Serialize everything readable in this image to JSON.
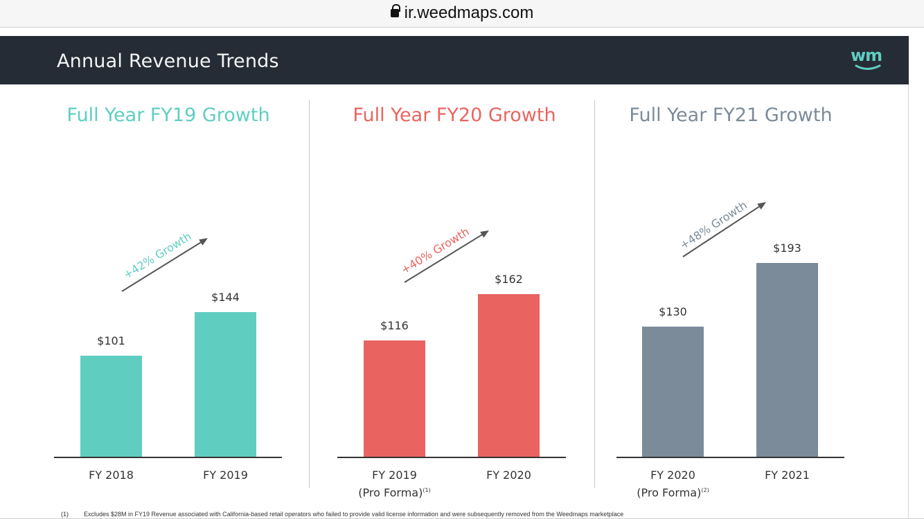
{
  "browser": {
    "url": "ir.weedmaps.com"
  },
  "slide": {
    "title": "Annual Revenue Trends",
    "logo": "wm",
    "footnote": {
      "mark": "(1)",
      "text": "Excludes $28M in FY19 Revenue associated with California-based retail operators who failed to provide valid license information and were subsequently removed from the Weedmaps marketplace"
    }
  },
  "chart_data": [
    {
      "type": "bar",
      "title": "Full Year FY19 Growth",
      "title_color": "#5fcec1",
      "bar_color": "#5fcec1",
      "categories": [
        "FY 2018",
        "FY 2019"
      ],
      "category_notes": [
        "",
        ""
      ],
      "values": [
        101,
        144
      ],
      "value_labels": [
        "$101",
        "$144"
      ],
      "growth_label": "+42% Growth",
      "growth_color": "#5fcec1"
    },
    {
      "type": "bar",
      "title": "Full Year FY20 Growth",
      "title_color": "#e96460",
      "bar_color": "#e96460",
      "categories": [
        "FY 2019",
        "FY 2020"
      ],
      "category_notes": [
        "(Pro Forma)",
        ""
      ],
      "category_superscripts": [
        "(1)",
        ""
      ],
      "values": [
        116,
        162
      ],
      "value_labels": [
        "$116",
        "$162"
      ],
      "growth_label": "+40% Growth",
      "growth_color": "#e96460"
    },
    {
      "type": "bar",
      "title": "Full Year FY21 Growth",
      "title_color": "#7b8b99",
      "bar_color": "#7b8b99",
      "categories": [
        "FY 2020",
        "FY 2021"
      ],
      "category_notes": [
        "(Pro Forma)",
        ""
      ],
      "category_superscripts": [
        "(2)",
        ""
      ],
      "values": [
        130,
        193
      ],
      "value_labels": [
        "$130",
        "$193"
      ],
      "growth_label": "+48% Growth",
      "growth_color": "#7b8b99"
    }
  ]
}
